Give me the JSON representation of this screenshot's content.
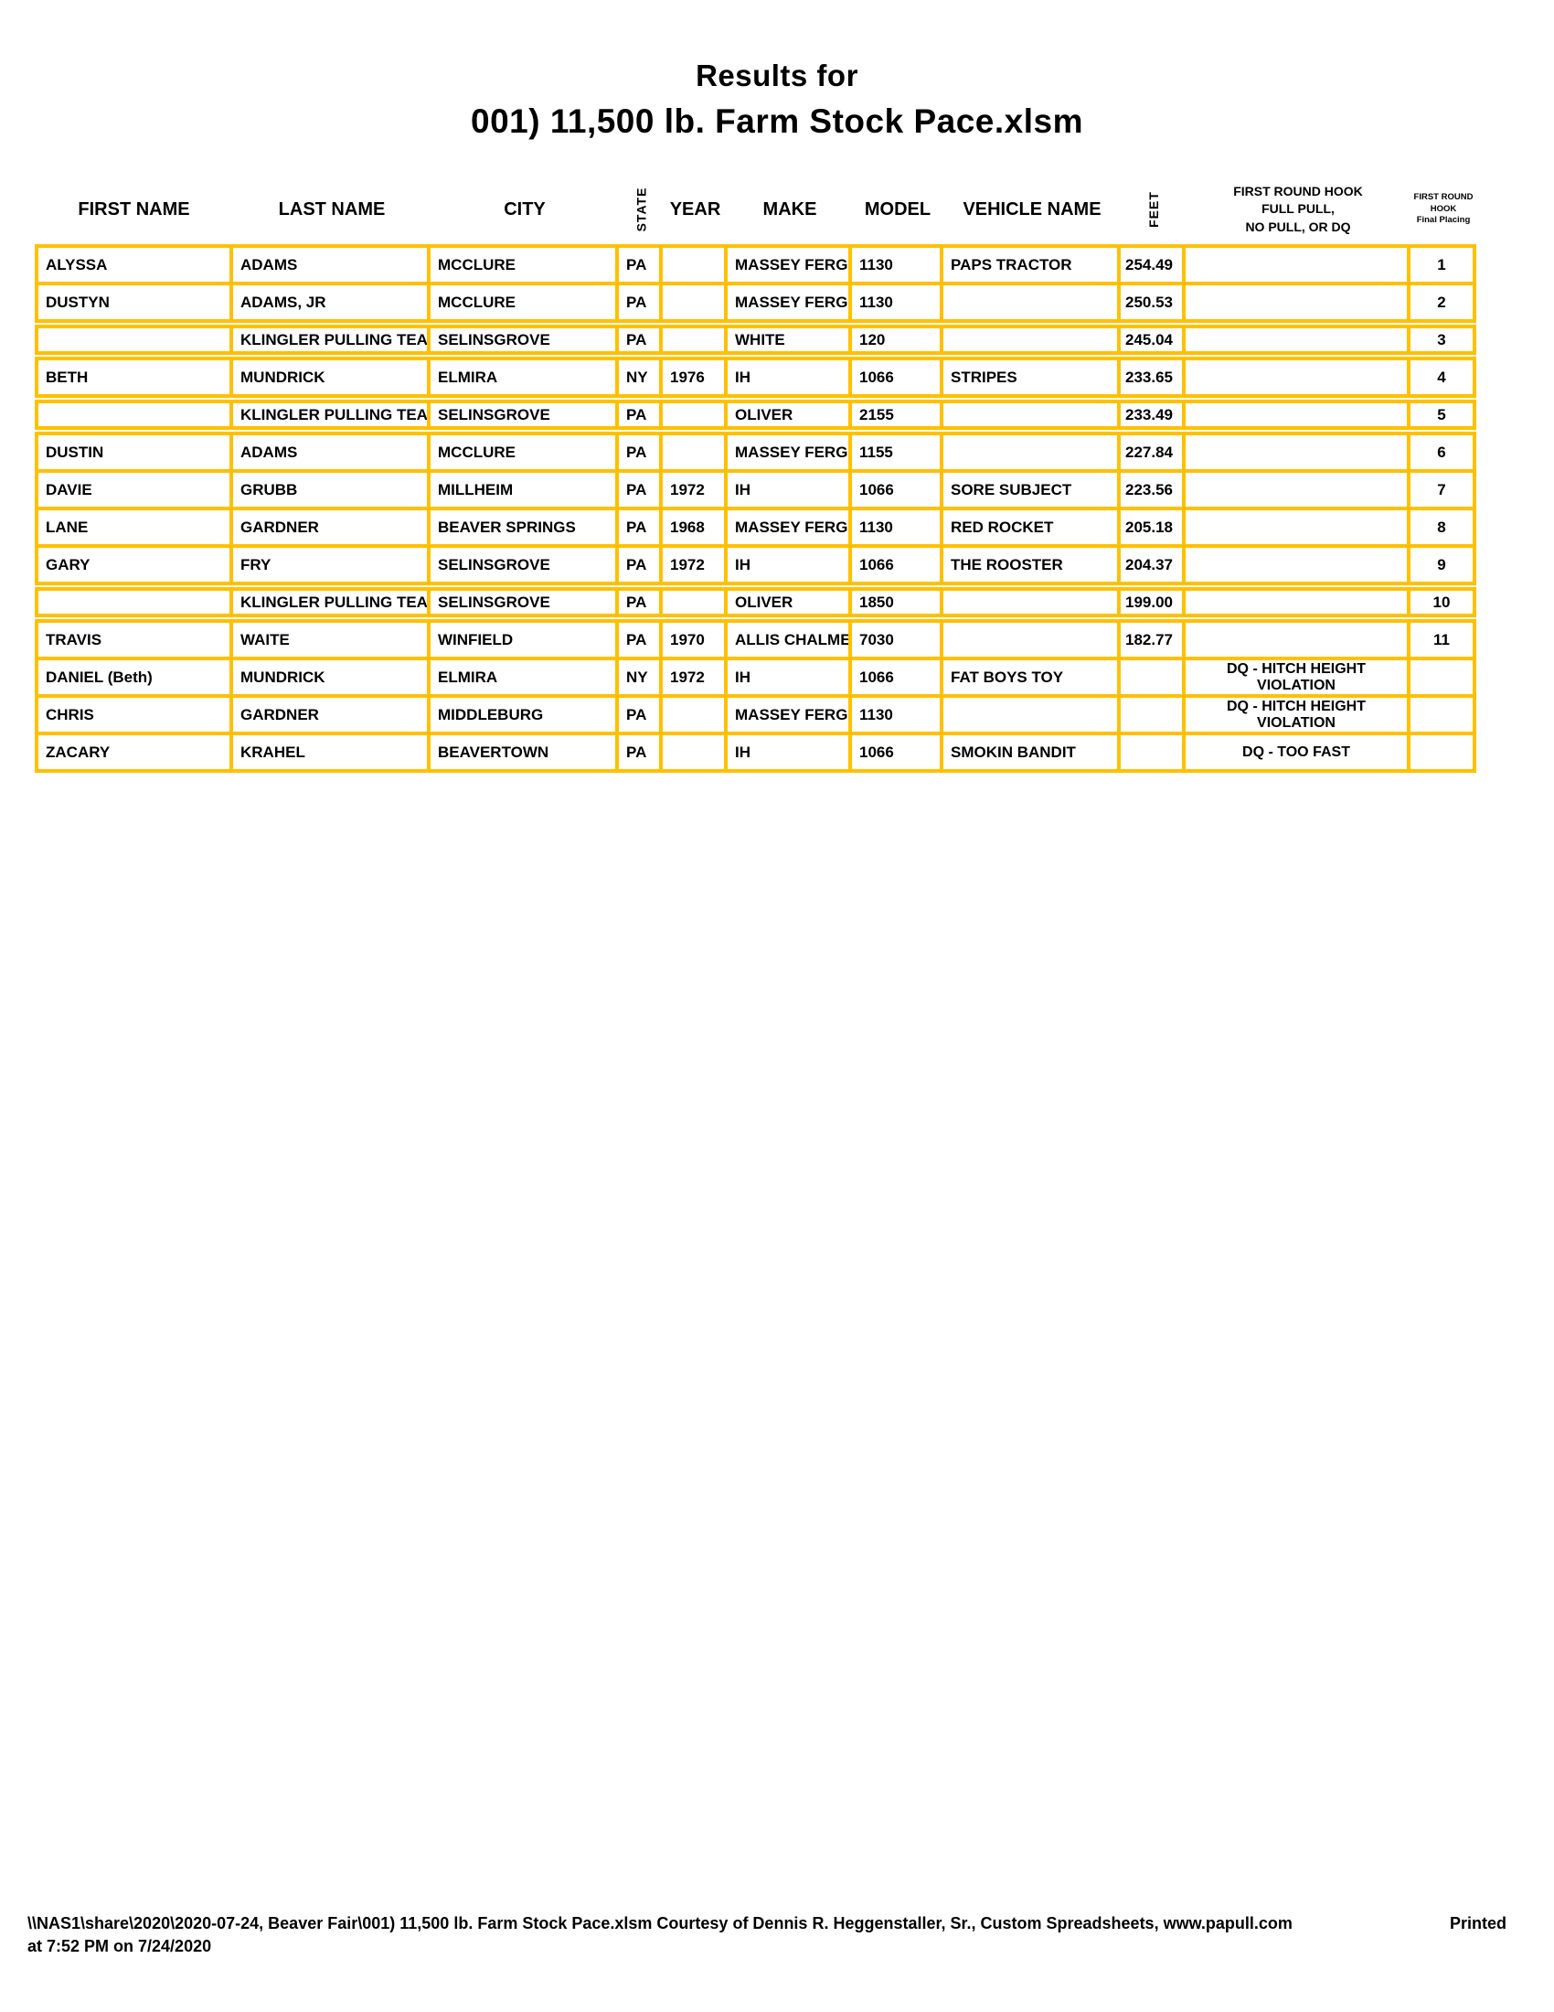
{
  "title": {
    "line1": "Results for",
    "line2": "001) 11,500 lb. Farm Stock Pace.xlsm"
  },
  "table": {
    "columns": [
      {
        "key": "first_name",
        "label": "FIRST NAME"
      },
      {
        "key": "last_name",
        "label": "LAST NAME"
      },
      {
        "key": "city",
        "label": "CITY"
      },
      {
        "key": "state",
        "label": "STATE",
        "rotated": true
      },
      {
        "key": "year",
        "label": "YEAR"
      },
      {
        "key": "make",
        "label": "MAKE"
      },
      {
        "key": "model",
        "label": "MODEL"
      },
      {
        "key": "vehicle_name",
        "label": "VEHICLE NAME"
      },
      {
        "key": "feet",
        "label": "FEET",
        "rotated": true
      },
      {
        "key": "hook",
        "label": "FIRST ROUND HOOK\nFULL PULL,\nNO PULL, OR DQ"
      },
      {
        "key": "placing",
        "label": "FIRST ROUND\nHOOK\nFinal Placing"
      }
    ],
    "rows": [
      {
        "first_name": "ALYSSA",
        "last_name": "ADAMS",
        "city": "MCCLURE",
        "state": "PA",
        "year": "",
        "make": "MASSEY FERGUS",
        "model": "1130",
        "vehicle_name": "PAPS TRACTOR",
        "feet": "254.49",
        "hook": "",
        "placing": "1"
      },
      {
        "first_name": "DUSTYN",
        "last_name": "ADAMS, JR",
        "city": "MCCLURE",
        "state": "PA",
        "year": "",
        "make": "MASSEY FERGUS",
        "model": "1130",
        "vehicle_name": "",
        "feet": "250.53",
        "hook": "",
        "placing": "2"
      },
      {
        "first_name": "",
        "last_name": "KLINGLER PULLING TEAM",
        "city": "SELINSGROVE",
        "state": "PA",
        "year": "",
        "make": "WHITE",
        "model": "120",
        "vehicle_name": "",
        "feet": "245.04",
        "hook": "",
        "placing": "3"
      },
      {
        "first_name": "BETH",
        "last_name": "MUNDRICK",
        "city": "ELMIRA",
        "state": "NY",
        "year": "1976",
        "make": "IH",
        "model": "1066",
        "vehicle_name": "STRIPES",
        "feet": "233.65",
        "hook": "",
        "placing": "4"
      },
      {
        "first_name": "",
        "last_name": "KLINGLER PULLING TEAM",
        "city": "SELINSGROVE",
        "state": "PA",
        "year": "",
        "make": "OLIVER",
        "model": "2155",
        "vehicle_name": "",
        "feet": "233.49",
        "hook": "",
        "placing": "5"
      },
      {
        "first_name": "DUSTIN",
        "last_name": "ADAMS",
        "city": "MCCLURE",
        "state": "PA",
        "year": "",
        "make": "MASSEY FERGUS",
        "model": "1155",
        "vehicle_name": "",
        "feet": "227.84",
        "hook": "",
        "placing": "6"
      },
      {
        "first_name": "DAVIE",
        "last_name": "GRUBB",
        "city": "MILLHEIM",
        "state": "PA",
        "year": "1972",
        "make": "IH",
        "model": "1066",
        "vehicle_name": "SORE SUBJECT",
        "feet": "223.56",
        "hook": "",
        "placing": "7"
      },
      {
        "first_name": "LANE",
        "last_name": "GARDNER",
        "city": "BEAVER SPRINGS",
        "state": "PA",
        "year": "1968",
        "make": "MASSEY FERGUS",
        "model": "1130",
        "vehicle_name": "RED ROCKET",
        "feet": "205.18",
        "hook": "",
        "placing": "8"
      },
      {
        "first_name": "GARY",
        "last_name": "FRY",
        "city": "SELINSGROVE",
        "state": "PA",
        "year": "1972",
        "make": "IH",
        "model": "1066",
        "vehicle_name": "THE ROOSTER",
        "feet": "204.37",
        "hook": "",
        "placing": "9"
      },
      {
        "first_name": "",
        "last_name": "KLINGLER PULLING TEAM",
        "city": "SELINSGROVE",
        "state": "PA",
        "year": "",
        "make": "OLIVER",
        "model": "1850",
        "vehicle_name": "",
        "feet": "199.00",
        "hook": "",
        "placing": "10"
      },
      {
        "first_name": "TRAVIS",
        "last_name": "WAITE",
        "city": "WINFIELD",
        "state": "PA",
        "year": "1970",
        "make": "ALLIS CHALMERS",
        "model": "7030",
        "vehicle_name": "",
        "feet": "182.77",
        "hook": "",
        "placing": "11"
      },
      {
        "first_name": "DANIEL (Beth)",
        "last_name": "MUNDRICK",
        "city": "ELMIRA",
        "state": "NY",
        "year": "1972",
        "make": "IH",
        "model": "1066",
        "vehicle_name": "FAT BOYS TOY",
        "feet": "",
        "hook": "DQ - HITCH HEIGHT VIOLATION",
        "placing": ""
      },
      {
        "first_name": "CHRIS",
        "last_name": "GARDNER",
        "city": "MIDDLEBURG",
        "state": "PA",
        "year": "",
        "make": "MASSEY FERGUS",
        "model": "1130",
        "vehicle_name": "",
        "feet": "",
        "hook": "DQ - HITCH HEIGHT VIOLATION",
        "placing": ""
      },
      {
        "first_name": "ZACARY",
        "last_name": "KRAHEL",
        "city": "BEAVERTOWN",
        "state": "PA",
        "year": "",
        "make": "IH",
        "model": "1066",
        "vehicle_name": "SMOKIN BANDIT",
        "feet": "",
        "hook": "DQ - TOO FAST",
        "placing": ""
      }
    ]
  },
  "footer": {
    "path_and_credit": "\\\\NAS1\\share\\2020\\2020-07-24, Beaver Fair\\001) 11,500 lb. Farm Stock Pace.xlsm  Courtesy of Dennis R. Heggenstaller, Sr., Custom Spreadsheets, www.papull.com",
    "printed_label": "Printed",
    "printed_line2": "at 7:52 PM on 7/24/2020"
  },
  "colors": {
    "border": "#FFC000",
    "text": "#000000",
    "page": "#FFFFFF"
  }
}
